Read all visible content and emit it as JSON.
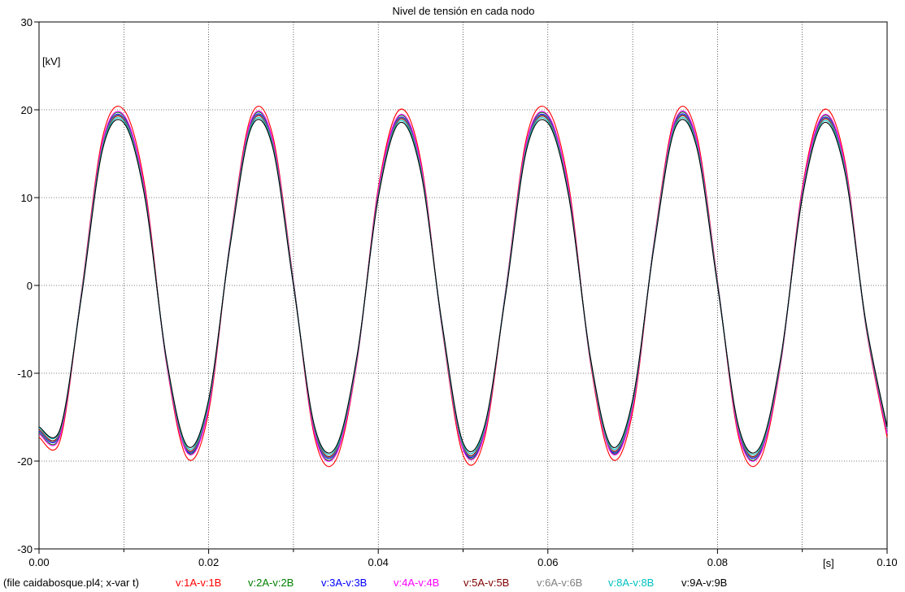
{
  "chart_data": {
    "type": "line",
    "title": "Nivel de tensión en cada nodo",
    "ylabel": "[kV]",
    "xlabel": "[s]",
    "xlim": [
      0,
      0.1
    ],
    "ylim": [
      -30,
      30
    ],
    "x_ticks": [
      0,
      0.02,
      0.04,
      0.06,
      0.08,
      0.1
    ],
    "x_tick_labels": [
      "0.00",
      "0.02",
      "0.04",
      "0.06",
      "0.08",
      "0.10"
    ],
    "y_ticks": [
      -30,
      -20,
      -10,
      0,
      10,
      20,
      30
    ],
    "y_tick_labels": [
      "-30",
      "-20",
      "-10",
      "0",
      "10",
      "20",
      "30"
    ],
    "grid": true,
    "footer_label": "(file caidabosque.pl4; x-var t)",
    "x": [
      0,
      0.0025,
      0.005,
      0.0075,
      0.01,
      0.0125,
      0.015,
      0.0175,
      0.02,
      0.0225,
      0.025,
      0.0275,
      0.03,
      0.0325,
      0.035,
      0.0375,
      0.04,
      0.0425,
      0.045,
      0.0475,
      0.05,
      0.0525,
      0.055,
      0.0575,
      0.06,
      0.0625,
      0.065,
      0.0675,
      0.07,
      0.0725,
      0.075,
      0.0775,
      0.08,
      0.0825,
      0.085,
      0.0875,
      0.09,
      0.0925,
      0.095,
      0.0975,
      0.1
    ],
    "series": [
      {
        "name": "v:1A-v:1B",
        "color": "#ff0000",
        "values": [
          -17.3,
          -17.6,
          -0.8,
          16.9,
          20.0,
          11.2,
          -8.7,
          -19.7,
          -14.4,
          4.8,
          19.3,
          17.3,
          0.5,
          -17.3,
          -19.9,
          -8.6,
          11.1,
          20.0,
          14.3,
          -4.7,
          -19.3,
          -17.5,
          -0.8,
          16.9,
          20.0,
          11.2,
          -8.7,
          -19.7,
          -14.4,
          4.8,
          19.3,
          17.3,
          0.5,
          -17.3,
          -19.9,
          -8.6,
          11.1,
          20.0,
          14.3,
          -4.7,
          -17.3
        ]
      },
      {
        "name": "v:2A-v:2B",
        "color": "#008000",
        "values": [
          -16.8,
          -17.0,
          -0.9,
          16.3,
          19.3,
          10.6,
          -8.5,
          -19.0,
          -13.8,
          4.7,
          18.7,
          16.7,
          0.4,
          -16.8,
          -19.2,
          -8.4,
          10.7,
          19.3,
          13.8,
          -4.6,
          -18.6,
          -16.9,
          -0.8,
          16.3,
          19.3,
          10.6,
          -8.4,
          -19.0,
          -13.8,
          4.7,
          18.7,
          16.7,
          0.4,
          -16.8,
          -19.2,
          -8.4,
          10.7,
          19.3,
          13.8,
          -4.6,
          -16.8
        ]
      },
      {
        "name": "v:3A-v:3B",
        "color": "#0000ff",
        "values": [
          -16.6,
          -16.8,
          -1.0,
          16.1,
          19.1,
          10.4,
          -8.5,
          -18.9,
          -13.6,
          4.6,
          18.5,
          16.5,
          0.3,
          -16.6,
          -19.0,
          -8.3,
          10.5,
          19.1,
          13.6,
          -4.5,
          -18.5,
          -16.7,
          -0.9,
          16.1,
          19.1,
          10.4,
          -8.4,
          -18.9,
          -13.6,
          4.6,
          18.5,
          16.5,
          0.3,
          -16.6,
          -19.0,
          -8.3,
          10.5,
          19.1,
          13.6,
          -4.5,
          -16.6
        ]
      },
      {
        "name": "v:4A-v:4B",
        "color": "#ff00ff",
        "values": [
          -16.9,
          -17.1,
          -0.9,
          16.4,
          19.4,
          10.7,
          -8.6,
          -19.1,
          -13.9,
          4.7,
          18.8,
          16.8,
          0.4,
          -16.9,
          -19.3,
          -8.5,
          10.8,
          19.4,
          13.9,
          -4.6,
          -18.7,
          -17.0,
          -0.8,
          16.4,
          19.4,
          10.7,
          -8.5,
          -19.1,
          -13.9,
          4.7,
          18.8,
          16.8,
          0.4,
          -16.9,
          -19.3,
          -8.5,
          10.8,
          19.4,
          13.9,
          -4.6,
          -16.9
        ]
      },
      {
        "name": "v:5A-v:5B",
        "color": "#800000",
        "values": [
          -16.4,
          -16.6,
          -1.1,
          15.9,
          18.9,
          10.2,
          -8.4,
          -18.7,
          -13.4,
          4.5,
          18.3,
          16.3,
          0.2,
          -16.4,
          -18.8,
          -8.2,
          10.3,
          18.9,
          13.4,
          -4.4,
          -18.3,
          -16.5,
          -1.0,
          15.9,
          18.9,
          10.2,
          -8.3,
          -18.7,
          -13.4,
          4.5,
          18.3,
          16.3,
          0.2,
          -16.4,
          -18.8,
          -8.2,
          10.3,
          18.9,
          13.4,
          -4.4,
          -16.4
        ]
      },
      {
        "name": "v:6A-v:6B",
        "color": "#808080",
        "values": [
          -16.5,
          -16.7,
          -1.0,
          16.0,
          19.0,
          10.3,
          -8.4,
          -18.8,
          -13.5,
          4.6,
          18.4,
          16.4,
          0.3,
          -16.5,
          -18.9,
          -8.3,
          10.4,
          19.0,
          13.5,
          -4.5,
          -18.4,
          -16.6,
          -0.9,
          16.0,
          19.0,
          10.3,
          -8.4,
          -18.8,
          -13.5,
          4.6,
          18.4,
          16.4,
          0.3,
          -16.5,
          -18.9,
          -8.3,
          10.4,
          19.0,
          13.5,
          -4.5,
          -16.5
        ]
      },
      {
        "name": "v:8A-v:8B",
        "color": "#00c0c0",
        "values": [
          -16.2,
          -16.4,
          -1.2,
          15.7,
          18.7,
          10.0,
          -8.3,
          -18.5,
          -13.2,
          4.4,
          18.1,
          16.1,
          0.1,
          -16.2,
          -18.6,
          -8.1,
          10.1,
          18.7,
          13.2,
          -4.3,
          -18.1,
          -16.3,
          -1.1,
          15.7,
          18.7,
          10.0,
          -8.2,
          -18.5,
          -13.2,
          4.4,
          18.1,
          16.1,
          0.1,
          -16.2,
          -18.6,
          -8.1,
          10.1,
          18.7,
          13.2,
          -4.3,
          -16.2
        ]
      },
      {
        "name": "v:9A-v:9B",
        "color": "#000000",
        "values": [
          -16.1,
          -16.3,
          -1.3,
          15.5,
          18.5,
          9.9,
          -8.2,
          -18.3,
          -13.0,
          4.3,
          17.9,
          15.9,
          0.0,
          -16.1,
          -18.4,
          -8.0,
          10.0,
          18.5,
          13.0,
          -4.2,
          -17.9,
          -16.1,
          -1.2,
          15.5,
          18.5,
          9.9,
          -8.1,
          -18.3,
          -13.0,
          4.3,
          17.9,
          15.9,
          0.0,
          -16.1,
          -18.4,
          -8.0,
          10.0,
          18.5,
          13.0,
          -4.2,
          -16.1
        ]
      }
    ]
  }
}
